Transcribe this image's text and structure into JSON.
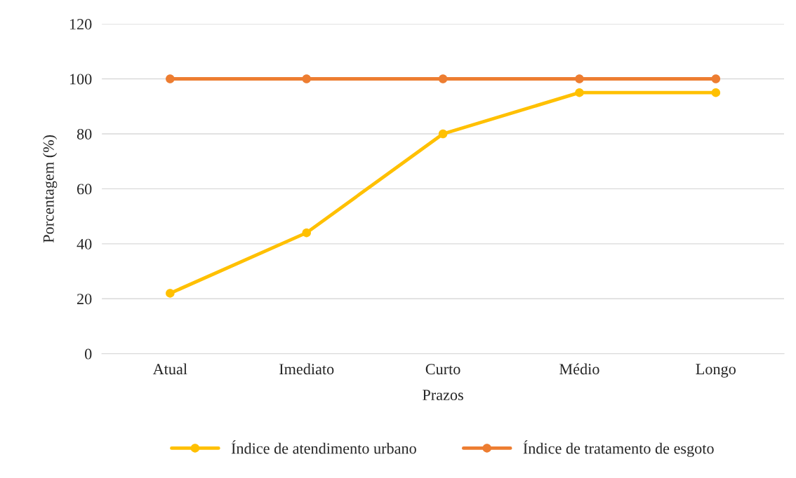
{
  "chart_data": {
    "type": "line",
    "xlabel": "Prazos",
    "ylabel": "Porcentagem (%)",
    "categories": [
      "Atual",
      "Imediato",
      "Curto",
      "Médio",
      "Longo"
    ],
    "series": [
      {
        "name": "Índice de atendimento urbano",
        "color": "#ffc000",
        "values": [
          22,
          44,
          80,
          95,
          95
        ]
      },
      {
        "name": "Índice de tratamento de esgoto",
        "color": "#ed7d31",
        "values": [
          100,
          100,
          100,
          100,
          100
        ]
      }
    ],
    "ylim": [
      0,
      120
    ],
    "yticks": [
      0,
      20,
      40,
      60,
      80,
      100,
      120
    ],
    "grid": "y",
    "legend": "bottom",
    "marker": "circle",
    "line_style": "solid"
  }
}
